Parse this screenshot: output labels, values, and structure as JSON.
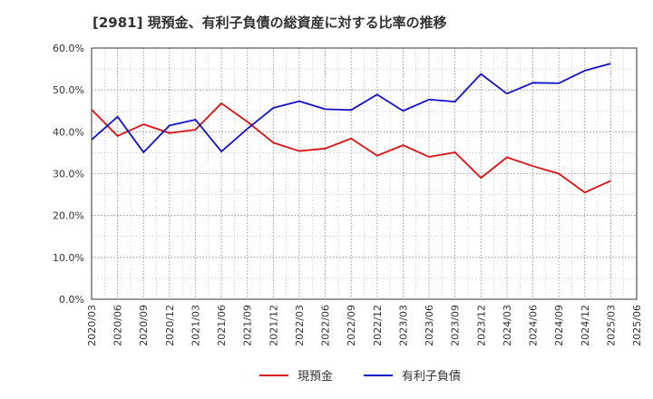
{
  "chart_data": {
    "type": "line",
    "title": "[2981]  現預金、有利子負債の総資産に対する比率の推移",
    "xlabel": "",
    "ylabel": "",
    "ylim": [
      0,
      60
    ],
    "y_ticks": [
      "0.0%",
      "10.0%",
      "20.0%",
      "30.0%",
      "40.0%",
      "50.0%",
      "60.0%"
    ],
    "x_ticks": [
      "2020/03",
      "2020/06",
      "2020/09",
      "2020/12",
      "2021/03",
      "2021/06",
      "2021/09",
      "2021/12",
      "2022/03",
      "2022/06",
      "2022/09",
      "2022/12",
      "2023/03",
      "2023/06",
      "2023/09",
      "2023/12",
      "2024/03",
      "2024/06",
      "2024/09",
      "2024/12",
      "2025/03",
      "2025/06"
    ],
    "x": [
      "2020/03",
      "2020/06",
      "2020/09",
      "2020/12",
      "2021/03",
      "2021/06",
      "2021/09",
      "2021/12",
      "2022/03",
      "2022/06",
      "2022/09",
      "2022/12",
      "2023/03",
      "2023/06",
      "2023/09",
      "2023/12",
      "2024/03",
      "2024/06",
      "2024/09",
      "2024/12",
      "2025/03"
    ],
    "grid": true,
    "legend_position": "bottom",
    "series": [
      {
        "name": "現預金",
        "color": "#dd1111",
        "values": [
          45.3,
          39.0,
          41.8,
          39.7,
          40.5,
          46.8,
          42.4,
          37.4,
          35.4,
          36.0,
          38.4,
          34.3,
          36.8,
          34.0,
          35.1,
          29.0,
          33.9,
          31.8,
          30.0,
          25.5,
          28.3
        ]
      },
      {
        "name": "有利子負債",
        "color": "#1111cc",
        "values": [
          38.1,
          43.6,
          35.1,
          41.5,
          42.9,
          35.3,
          40.7,
          45.7,
          47.3,
          45.4,
          45.2,
          48.9,
          45.0,
          47.7,
          47.2,
          53.8,
          49.1,
          51.7,
          51.6,
          54.6,
          56.3
        ]
      }
    ]
  }
}
